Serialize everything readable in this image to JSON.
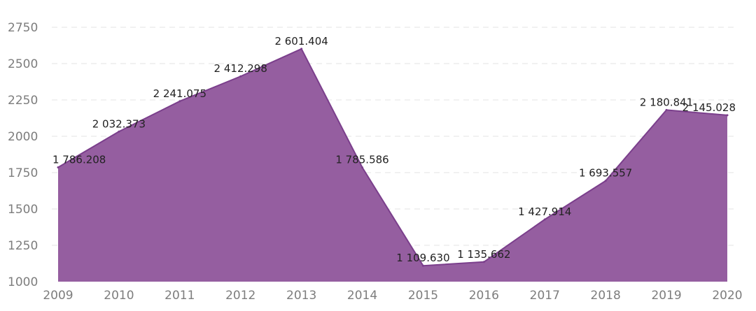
{
  "chart_data": {
    "type": "area",
    "x": [
      "2009",
      "2010",
      "2011",
      "2012",
      "2013",
      "2014",
      "2015",
      "2016",
      "2017",
      "2018",
      "2019",
      "2020"
    ],
    "values": [
      1786.208,
      2032.373,
      2241.075,
      2412.298,
      2601.404,
      1785.586,
      1109.63,
      1135.662,
      1427.914,
      1693.557,
      2180.841,
      2145.028
    ],
    "data_labels": [
      "1 786.208",
      "2 032.373",
      "2 241.075",
      "2 412.298",
      "2 601.404",
      "1 785.586",
      "1 109.630",
      "1 135.662",
      "1 427.914",
      "1 693.557",
      "2 180.841",
      "2 145.028"
    ],
    "y_ticks": [
      "1000",
      "1250",
      "1500",
      "1750",
      "2000",
      "2250",
      "2500",
      "2750"
    ],
    "ylim": [
      1000,
      2800
    ],
    "grid": true,
    "colors": {
      "fill": "#955ea0",
      "line": "#7b3f8c",
      "grid": "#e3e3e3",
      "tick_text": "#7d7d7d",
      "label_text": "#222222"
    }
  }
}
